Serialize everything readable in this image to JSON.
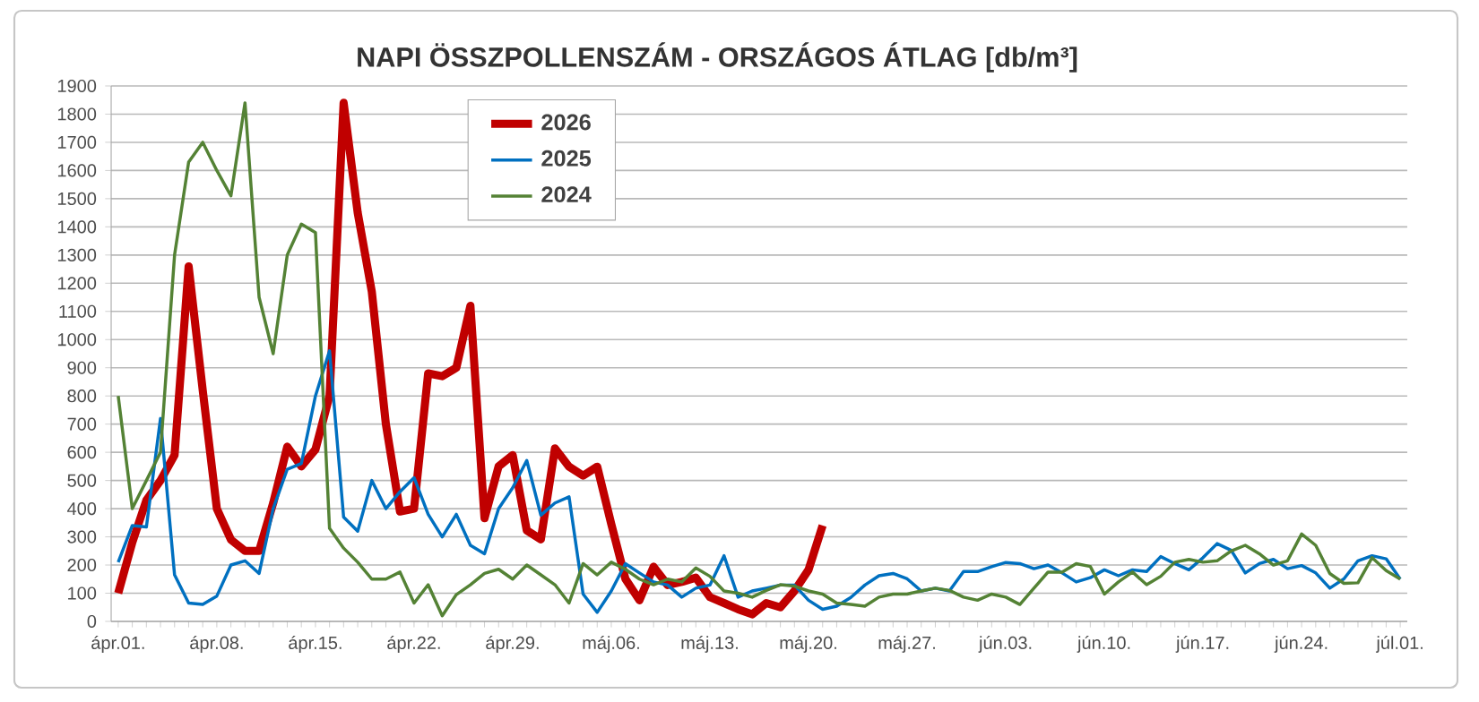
{
  "chart_data": {
    "type": "line",
    "title": "NAPI ÖSSZPOLLENSZÁM - ORSZÁGOS ÁTLAG [db/m³]",
    "categories": [
      "ápr.01.",
      null,
      null,
      null,
      null,
      null,
      null,
      "ápr.08.",
      null,
      null,
      null,
      null,
      null,
      null,
      "ápr.15.",
      null,
      null,
      null,
      null,
      null,
      null,
      "ápr.22.",
      null,
      null,
      null,
      null,
      null,
      null,
      "ápr.29.",
      null,
      null,
      null,
      null,
      null,
      null,
      "máj.06.",
      null,
      null,
      null,
      null,
      null,
      null,
      "máj.13.",
      null,
      null,
      null,
      null,
      null,
      null,
      "máj.20.",
      null,
      null,
      null,
      null,
      null,
      null,
      "máj.27.",
      null,
      null,
      null,
      null,
      null,
      null,
      "jún.03.",
      null,
      null,
      null,
      null,
      null,
      null,
      "jún.10.",
      null,
      null,
      null,
      null,
      null,
      null,
      "jún.17.",
      null,
      null,
      null,
      null,
      null,
      null,
      "jún.24.",
      null,
      null,
      null,
      null,
      null,
      null,
      "júl.01."
    ],
    "series": [
      {
        "name": "2026",
        "color": "#c00000",
        "values": [
          100,
          280,
          430,
          500,
          590,
          1260,
          820,
          400,
          290,
          250,
          250,
          420,
          620,
          550,
          610,
          800,
          1840,
          1450,
          1170,
          700,
          390,
          400,
          880,
          870,
          900,
          1120,
          366,
          550,
          590,
          323,
          291,
          614,
          549,
          517,
          549,
          345,
          151,
          75,
          194,
          129,
          140,
          155,
          86,
          65,
          43,
          25,
          65,
          50,
          108,
          183,
          340,
          null,
          null,
          null,
          null,
          null,
          null,
          null,
          null,
          null,
          null,
          null,
          null,
          null,
          null,
          null,
          null,
          null,
          null,
          null,
          null,
          null,
          null,
          null,
          null,
          null,
          null,
          null,
          null,
          null,
          null,
          null,
          null,
          null,
          null,
          null,
          null,
          null,
          null,
          null,
          null,
          null
        ]
      },
      {
        "name": "2025",
        "color": "#0070c0",
        "values": [
          210,
          340,
          335,
          720,
          165,
          65,
          60,
          90,
          200,
          215,
          170,
          400,
          540,
          560,
          800,
          960,
          370,
          320,
          500,
          400,
          460,
          510,
          380,
          300,
          380,
          270,
          240,
          400,
          474,
          571,
          377,
          420,
          442,
          97,
          32,
          108,
          205,
          172,
          140,
          129,
          86,
          118,
          129,
          233,
          86,
          108,
          118,
          129,
          129,
          75,
          43,
          54,
          85,
          129,
          162,
          170,
          151,
          108,
          118,
          108,
          177,
          177,
          194,
          209,
          205,
          187,
          200,
          172,
          140,
          155,
          183,
          162,
          183,
          177,
          230,
          205,
          183,
          226,
          276,
          252,
          172,
          205,
          220,
          187,
          198,
          172,
          118,
          151,
          215,
          233,
          222,
          150
        ]
      },
      {
        "name": "2024",
        "color": "#548235",
        "values": [
          800,
          400,
          500,
          600,
          1300,
          1630,
          1700,
          1600,
          1510,
          1840,
          1150,
          950,
          1300,
          1410,
          1380,
          330,
          260,
          210,
          150,
          150,
          175,
          65,
          130,
          20,
          95,
          130,
          170,
          185,
          150,
          200,
          165,
          130,
          65,
          205,
          165,
          210,
          185,
          150,
          130,
          150,
          140,
          190,
          160,
          108,
          100,
          86,
          110,
          130,
          125,
          108,
          97,
          65,
          60,
          54,
          86,
          97,
          97,
          108,
          118,
          110,
          86,
          75,
          97,
          86,
          60,
          118,
          175,
          175,
          205,
          195,
          97,
          140,
          175,
          130,
          160,
          210,
          220,
          210,
          215,
          250,
          270,
          240,
          200,
          215,
          310,
          270,
          170,
          135,
          137,
          226,
          180,
          150
        ]
      }
    ],
    "ylim": [
      0,
      1900
    ],
    "yticks": [
      0,
      100,
      200,
      300,
      400,
      500,
      600,
      700,
      800,
      900,
      1000,
      1100,
      1200,
      1300,
      1400,
      1500,
      1600,
      1700,
      1800,
      1900
    ],
    "grid": "y",
    "legend": "top left"
  }
}
